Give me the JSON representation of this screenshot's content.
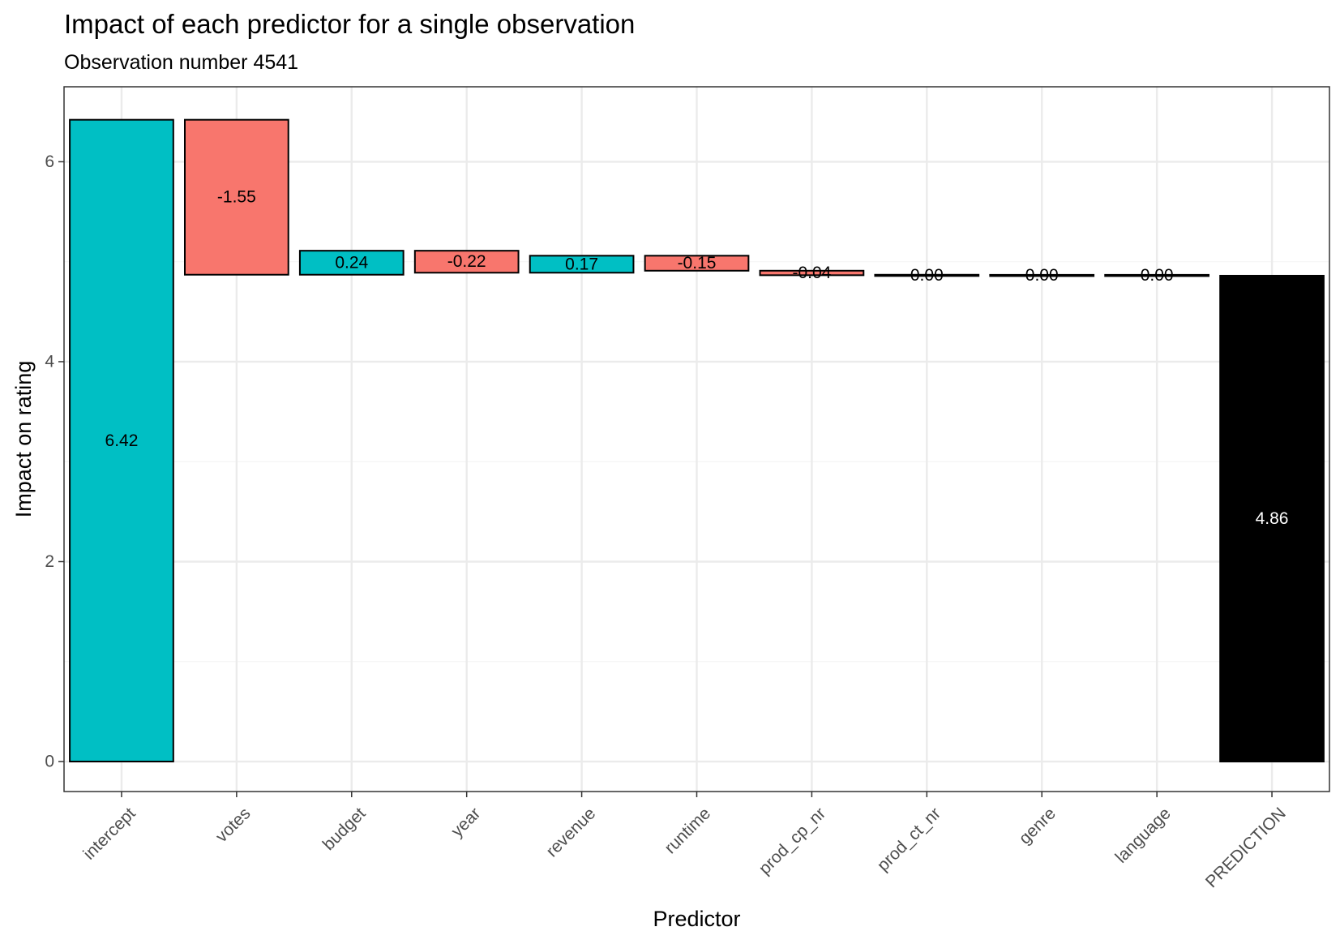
{
  "chart_data": {
    "type": "bar",
    "subtype": "waterfall",
    "title": "Impact of each predictor for a single observation",
    "subtitle": "Observation number 4541",
    "xlabel": "Predictor",
    "ylabel": "Impact on rating",
    "ylim": [
      -0.3,
      6.75
    ],
    "yticks": [
      0,
      2,
      4,
      6
    ],
    "grid": true,
    "legend": "none",
    "categories": [
      "intercept",
      "votes",
      "budget",
      "year",
      "revenue",
      "runtime",
      "prod_cp_nr",
      "prod_ct_nr",
      "genre",
      "language",
      "PREDICTION"
    ],
    "values": [
      6.42,
      -1.55,
      0.24,
      -0.22,
      0.17,
      -0.15,
      -0.04,
      -0.003,
      0.001,
      -0.001,
      4.86
    ],
    "bar_start": [
      0,
      6.42,
      4.87,
      5.11,
      4.89,
      5.06,
      4.91,
      4.865,
      4.862,
      4.863,
      0
    ],
    "bar_end": [
      6.42,
      4.87,
      5.11,
      4.89,
      5.06,
      4.91,
      4.865,
      4.862,
      4.863,
      4.862,
      4.86
    ],
    "data_labels": [
      "6.42",
      "-1.55",
      "0.24",
      "-0.22",
      "0.17",
      "-0.15",
      "-0.04",
      "0.00",
      "0.00",
      "0.00",
      "4.86"
    ],
    "colors": {
      "positive": "#00BFC4",
      "negative": "#F8766D",
      "prediction": "#000000",
      "bar_outline": "#000000",
      "grid_major": "#ebebeb",
      "grid_minor": "#f5f5f5",
      "panel_border": "#333333"
    }
  }
}
